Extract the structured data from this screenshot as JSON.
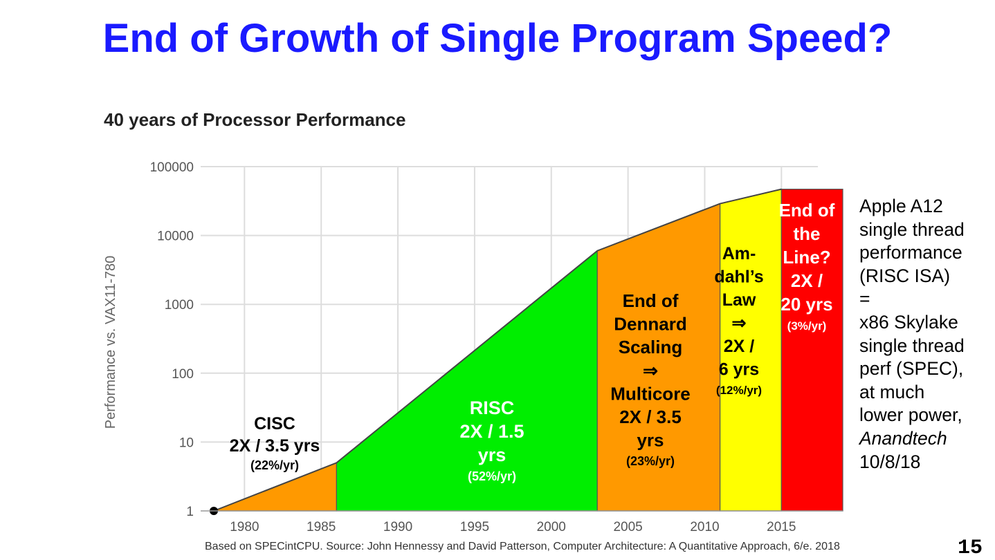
{
  "slide": {
    "title": "End of Growth of Single Program Speed?",
    "slide_number": "15",
    "source_note": "Based on SPECintCPU. Source: John Hennessy and David Patterson, Computer Architecture: A Quantitative Approach, 6/e. 2018",
    "side_note": [
      {
        "text": "Apple A12",
        "italic": false
      },
      {
        "text": "single thread",
        "italic": false
      },
      {
        "text": "performance",
        "italic": false
      },
      {
        "text": "(RISC ISA)",
        "italic": false
      },
      {
        "text": "=",
        "italic": false
      },
      {
        "text": "x86 Skylake",
        "italic": false
      },
      {
        "text": "single thread",
        "italic": false
      },
      {
        "text": "perf (SPEC),",
        "italic": false
      },
      {
        "text": "at much",
        "italic": false
      },
      {
        "text": "lower power,",
        "italic": false
      },
      {
        "text": "Anandtech",
        "italic": true
      },
      {
        "text": "10/8/18",
        "italic": false
      }
    ]
  },
  "chart_data": {
    "type": "area",
    "title": "40 years of Processor Performance",
    "xlabel": "",
    "ylabel": "Performance vs. VAX11-780",
    "y_scale": "log",
    "ylim": [
      1,
      100000
    ],
    "xlim": [
      1978,
      2019
    ],
    "y_ticks": [
      1,
      10,
      100,
      1000,
      10000,
      100000
    ],
    "y_tick_labels": [
      "1",
      "10",
      "100",
      "1000",
      "10000",
      "100000"
    ],
    "x_ticks": [
      1980,
      1985,
      1990,
      1995,
      2000,
      2005,
      2010,
      2015
    ],
    "x_tick_labels": [
      "1980",
      "1985",
      "1990",
      "1995",
      "2000",
      "2005",
      "2010",
      "2015"
    ],
    "series": [
      {
        "name": "Performance",
        "x": [
          1978,
          1986,
          2003,
          2011,
          2015
        ],
        "y": [
          1,
          5,
          6000,
          29000,
          47000
        ]
      }
    ],
    "regions": [
      {
        "name": "CISC",
        "x_start": 1978,
        "x_end": 1986,
        "color": "#ff9900",
        "text_color": "#000000",
        "follow_curve": true,
        "label_lines": [
          "CISC",
          "2X / 3.5 yrs"
        ],
        "rate": "(22%/yr)"
      },
      {
        "name": "RISC",
        "x_start": 1986,
        "x_end": 2003,
        "color": "#00ee00",
        "text_color": "#ffffff",
        "follow_curve": true,
        "label_lines": [
          "RISC",
          "2X / 1.5",
          "yrs"
        ],
        "rate": "(52%/yr)"
      },
      {
        "name": "Dennard",
        "x_start": 2003,
        "x_end": 2011,
        "color": "#ff9900",
        "text_color": "#000000",
        "follow_curve": true,
        "label_lines": [
          "End of",
          "Dennard",
          "Scaling",
          "⇒",
          "Multicore",
          "2X / 3.5",
          "yrs"
        ],
        "rate": "(23%/yr)"
      },
      {
        "name": "Amdahl",
        "x_start": 2011,
        "x_end": 2015,
        "color": "#ffff00",
        "text_color": "#000000",
        "follow_curve": true,
        "label_lines": [
          "Am-",
          "dahl’s",
          "Law",
          "⇒",
          "2X /",
          "6 yrs"
        ],
        "rate": "(12%/yr)"
      },
      {
        "name": "EndOfLine",
        "x_start": 2015,
        "x_end": 2019,
        "color": "#ff0000",
        "text_color": "#ffffff",
        "follow_curve": false,
        "top_y": 47000,
        "label_lines": [
          "End of",
          "the",
          "Line?",
          "2X /",
          "20 yrs"
        ],
        "rate": "(3%/yr)"
      }
    ]
  }
}
